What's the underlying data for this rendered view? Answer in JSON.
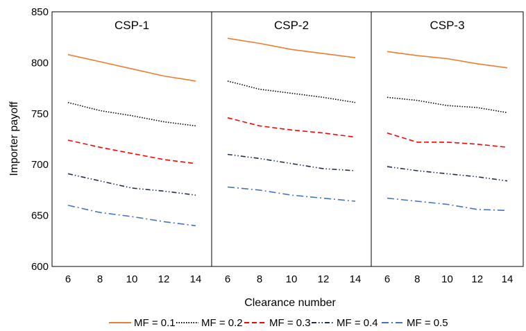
{
  "chart_data": {
    "type": "line",
    "xlabel": "Clearance number",
    "ylabel": "Importer payoff",
    "ylim": [
      600,
      850
    ],
    "y_ticks": [
      600,
      650,
      700,
      750,
      800,
      850
    ],
    "x": [
      6,
      8,
      10,
      12,
      14
    ],
    "x_tick_labels": [
      "6",
      "8",
      "10",
      "12",
      "14"
    ],
    "grid": false,
    "legend_position": "bottom",
    "panels": [
      {
        "title": "CSP-1",
        "series": [
          {
            "name": "MF = 0.1",
            "values": [
              808,
              801,
              794,
              787,
              782
            ]
          },
          {
            "name": "MF = 0.2",
            "values": [
              761,
              753,
              748,
              742,
              738
            ]
          },
          {
            "name": "MF = 0.3",
            "values": [
              724,
              717,
              711,
              705,
              701
            ]
          },
          {
            "name": "MF = 0.4",
            "values": [
              691,
              684,
              677,
              674,
              670
            ]
          },
          {
            "name": "MF = 0.5",
            "values": [
              660,
              653,
              649,
              644,
              640
            ]
          }
        ]
      },
      {
        "title": "CSP-2",
        "series": [
          {
            "name": "MF = 0.1",
            "values": [
              824,
              819,
              813,
              809,
              805
            ]
          },
          {
            "name": "MF = 0.2",
            "values": [
              782,
              774,
              770,
              766,
              761
            ]
          },
          {
            "name": "MF = 0.3",
            "values": [
              746,
              738,
              734,
              731,
              727
            ]
          },
          {
            "name": "MF = 0.4",
            "values": [
              710,
              706,
              701,
              696,
              694
            ]
          },
          {
            "name": "MF = 0.5",
            "values": [
              678,
              675,
              670,
              667,
              664
            ]
          }
        ]
      },
      {
        "title": "CSP-3",
        "series": [
          {
            "name": "MF = 0.1",
            "values": [
              811,
              807,
              804,
              799,
              795
            ]
          },
          {
            "name": "MF = 0.2",
            "values": [
              766,
              763,
              758,
              756,
              751
            ]
          },
          {
            "name": "MF = 0.3",
            "values": [
              731,
              722,
              722,
              720,
              717
            ]
          },
          {
            "name": "MF = 0.4",
            "values": [
              698,
              694,
              691,
              688,
              684
            ]
          },
          {
            "name": "MF = 0.5",
            "values": [
              667,
              664,
              661,
              656,
              655
            ]
          }
        ]
      }
    ],
    "series_styles": [
      {
        "name": "MF = 0.1",
        "color": "#ED7D31",
        "dash": "solid"
      },
      {
        "name": "MF = 0.2",
        "color": "#000000",
        "dash": "dotted"
      },
      {
        "name": "MF = 0.3",
        "color": "#FF0000",
        "dash": "dashed"
      },
      {
        "name": "MF = 0.4",
        "color": "#1F2E4D",
        "dash": "dash-dot-dot"
      },
      {
        "name": "MF = 0.5",
        "color": "#4472C4",
        "dash": "long-dash-dot"
      }
    ]
  }
}
